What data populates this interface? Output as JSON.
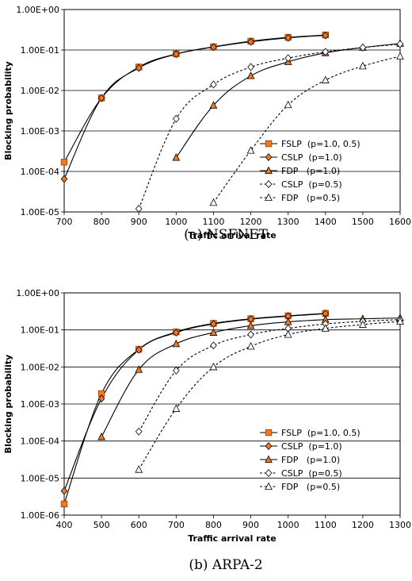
{
  "chart_data": [
    {
      "type": "line",
      "caption": "(a) NSFNET",
      "xlabel": "Traffic arrival rate",
      "ylabel": "Blocking probability",
      "yscale": "log",
      "xlim": [
        700,
        1600
      ],
      "ylim": [
        1e-05,
        1
      ],
      "xticks": [
        "700",
        "800",
        "900",
        "1000",
        "1100",
        "1200",
        "1300",
        "1400",
        "1500",
        "1600"
      ],
      "yticks": [
        "1.00E+00",
        "1.00E-01",
        "1.00E-02",
        "1.00E-03",
        "1.00E-04",
        "1.00E-05"
      ],
      "grid": "horizontal",
      "legend_position": "bottom-right",
      "series": [
        {
          "name": "FSLP  (p=1.0, 0.5)",
          "marker": "square",
          "color": "#f07820",
          "line": "solid",
          "x": [
            700,
            800,
            900,
            1000,
            1100,
            1200,
            1300,
            1400
          ],
          "y": [
            0.00017,
            0.0065,
            0.038,
            0.08,
            0.12,
            0.165,
            0.205,
            0.235
          ]
        },
        {
          "name": "CSLP  (p=1.0)",
          "marker": "diamond",
          "color": "#f07820",
          "line": "solid",
          "x": [
            700,
            800,
            900,
            1000,
            1100,
            1200,
            1300,
            1400
          ],
          "y": [
            6.5e-05,
            0.0065,
            0.036,
            0.079,
            0.118,
            0.16,
            0.2,
            0.23
          ]
        },
        {
          "name": "FDP   (p=1.0)",
          "marker": "triangle",
          "color": "#f07820",
          "line": "solid",
          "x": [
            1000,
            1100,
            1200,
            1300,
            1400,
            1500,
            1600
          ],
          "y": [
            0.00022,
            0.0043,
            0.023,
            0.051,
            0.085,
            0.115,
            0.145
          ]
        },
        {
          "name": "CSLP  (p=0.5)",
          "marker": "diamond-open",
          "color": "#ffffff",
          "line": "dashed",
          "x": [
            900,
            1000,
            1100,
            1200,
            1300,
            1400,
            1500,
            1600
          ],
          "y": [
            1.2e-05,
            0.002,
            0.014,
            0.038,
            0.063,
            0.09,
            0.115,
            0.14
          ]
        },
        {
          "name": "FDP   (p=0.5)",
          "marker": "triangle-open",
          "color": "#ffffff",
          "line": "dashed",
          "x": [
            1100,
            1200,
            1300,
            1400,
            1500,
            1600
          ],
          "y": [
            1.7e-05,
            0.00033,
            0.0044,
            0.018,
            0.04,
            0.07
          ]
        }
      ]
    },
    {
      "type": "line",
      "caption": "(b) ARPA-2",
      "xlabel": "Traffic arrival rate",
      "ylabel": "Blocking probability",
      "yscale": "log",
      "xlim": [
        400,
        1300
      ],
      "ylim": [
        1e-06,
        1
      ],
      "xticks": [
        "400",
        "500",
        "600",
        "700",
        "800",
        "900",
        "1000",
        "1100",
        "1200",
        "1300"
      ],
      "yticks": [
        "1.00E+00",
        "1.00E-01",
        "1.00E-02",
        "1.00E-03",
        "1.00E-04",
        "1.00E-05",
        "1.00E-06"
      ],
      "grid": "horizontal",
      "legend_position": "bottom-right",
      "series": [
        {
          "name": "FSLP  (p=1.0, 0.5)",
          "marker": "square",
          "color": "#f07820",
          "line": "solid",
          "x": [
            400,
            500,
            600,
            700,
            800,
            900,
            1000,
            1100
          ],
          "y": [
            2e-06,
            0.0019,
            0.03,
            0.088,
            0.15,
            0.2,
            0.24,
            0.28
          ]
        },
        {
          "name": "CSLP  (p=1.0)",
          "marker": "diamond",
          "color": "#f07820",
          "line": "solid",
          "x": [
            400,
            500,
            600,
            700,
            800,
            900,
            1000,
            1100
          ],
          "y": [
            4.5e-06,
            0.0014,
            0.029,
            0.085,
            0.145,
            0.195,
            0.235,
            0.275
          ]
        },
        {
          "name": "FDP   (p=1.0)",
          "marker": "triangle",
          "color": "#f07820",
          "line": "solid",
          "x": [
            500,
            600,
            700,
            800,
            900,
            1000,
            1100,
            1200,
            1300
          ],
          "y": [
            0.00013,
            0.0085,
            0.042,
            0.085,
            0.13,
            0.165,
            0.19,
            0.2,
            0.21
          ]
        },
        {
          "name": "CSLP  (p=0.5)",
          "marker": "diamond-open",
          "color": "#ffffff",
          "line": "dashed",
          "x": [
            600,
            700,
            800,
            900,
            1000,
            1100,
            1200,
            1300
          ],
          "y": [
            0.00018,
            0.008,
            0.038,
            0.075,
            0.11,
            0.145,
            0.17,
            0.19
          ]
        },
        {
          "name": "FDP   (p=0.5)",
          "marker": "triangle-open",
          "color": "#ffffff",
          "line": "dashed",
          "x": [
            600,
            700,
            800,
            900,
            1000,
            1100,
            1200,
            1300
          ],
          "y": [
            1.7e-05,
            0.00075,
            0.01,
            0.036,
            0.075,
            0.11,
            0.14,
            0.17
          ]
        }
      ]
    }
  ]
}
